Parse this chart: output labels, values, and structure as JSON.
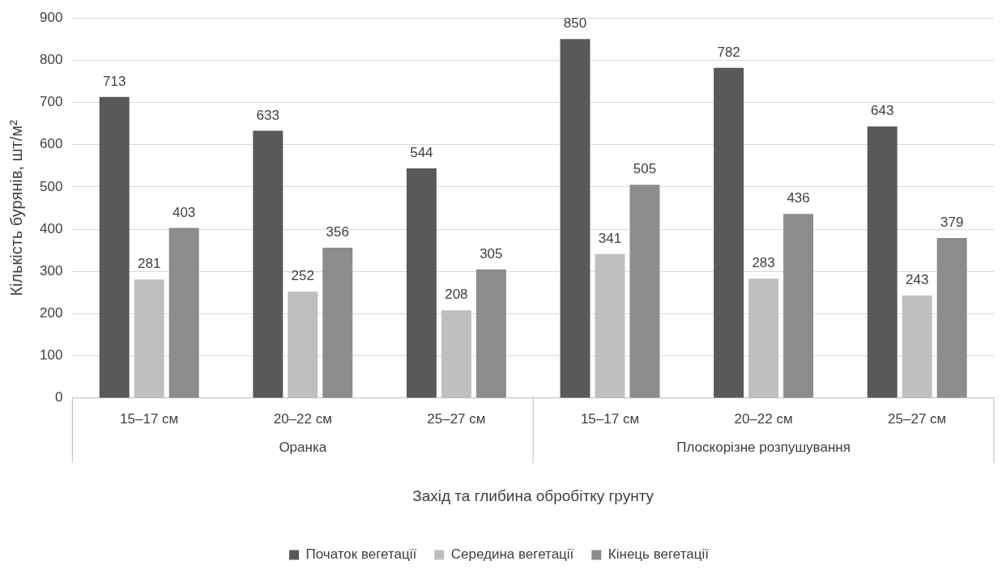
{
  "chart_data": {
    "type": "bar",
    "xlabel": "Захід та глибина обробітку грунту",
    "ylabel": "Кількість бурянів, шт/м²",
    "categories": [
      "15–17 см",
      "20–22 см",
      "25–27 см",
      "15–17 см",
      "20–22 см",
      "25–27 см"
    ],
    "series": [
      {
        "name": "Початок вегетації",
        "color": "#595959",
        "values": [
          713,
          633,
          544,
          850,
          782,
          643
        ]
      },
      {
        "name": "Середина вегетації",
        "color": "#bfbfbf",
        "values": [
          281,
          252,
          208,
          341,
          283,
          243
        ]
      },
      {
        "name": "Кінець вегетації",
        "color": "#8c8c8c",
        "values": [
          403,
          356,
          305,
          505,
          436,
          379
        ]
      }
    ],
    "annotations": [
      "Оранка",
      "Плоскорізне розпушування"
    ],
    "ylim": [
      0,
      900
    ],
    "yticks": [
      0,
      100,
      200,
      300,
      400,
      500,
      600,
      700,
      800,
      900
    ],
    "grid": "y",
    "legend": "bottom",
    "data_labels": true
  }
}
